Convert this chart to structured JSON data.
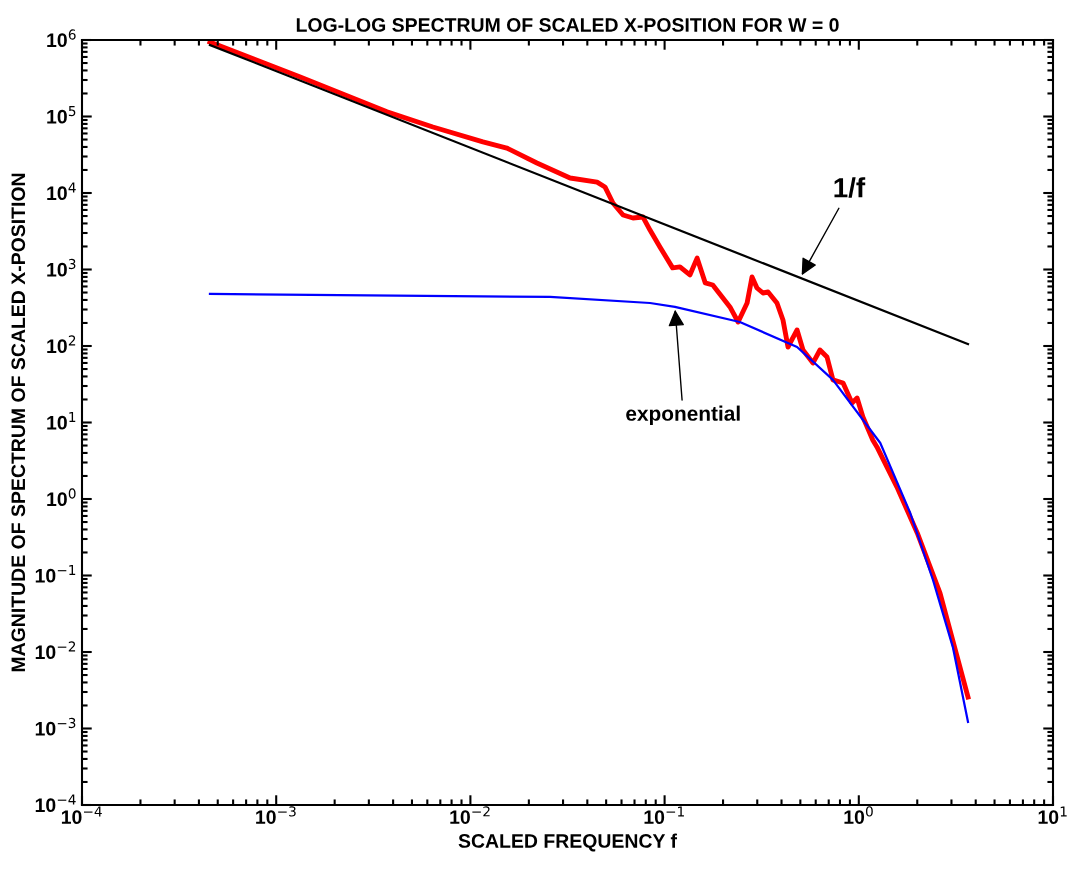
{
  "chart_data": {
    "type": "line",
    "title": "LOG-LOG SPECTRUM OF SCALED X-POSITION FOR W = 0",
    "xlabel": "SCALED FREQUENCY f",
    "ylabel": "MAGNITUDE OF SPECTRUM OF SCALED X-POSITION",
    "log": "xy",
    "grid": false,
    "legend": false,
    "xlim": [
      0.0001,
      10
    ],
    "ylim": [
      0.0001,
      1000000
    ],
    "xticks": [
      {
        "value": 0.0001,
        "label": "10$^{−4}$"
      },
      {
        "value": 0.001,
        "label": "10$^{−3}$"
      },
      {
        "value": 0.01,
        "label": "10$^{−2}$"
      },
      {
        "value": 0.1,
        "label": "10$^{−1}$"
      },
      {
        "value": 1,
        "label": "10$^{0}$"
      },
      {
        "value": 10,
        "label": "10$^{1}$"
      }
    ],
    "yticks": [
      {
        "value": 0.0001,
        "label": "10$^{−4}$"
      },
      {
        "value": 0.001,
        "label": "10$^{−3}$"
      },
      {
        "value": 0.01,
        "label": "10$^{−2}$"
      },
      {
        "value": 0.1,
        "label": "10$^{−1}$"
      },
      {
        "value": 1,
        "label": "10$^{0}$"
      },
      {
        "value": 10,
        "label": "10$^{1}$"
      },
      {
        "value": 100,
        "label": "10$^{2}$"
      },
      {
        "value": 1000,
        "label": "10$^{3}$"
      },
      {
        "value": 10000,
        "label": "10$^{4}$"
      },
      {
        "value": 100000,
        "label": "10$^{5}$"
      },
      {
        "value": 1000000,
        "label": "10$^{6}$"
      }
    ],
    "series": [
      {
        "color": "#000000",
        "x": [
          0.000456,
          3.65
        ],
        "values": [
          860000,
          106
        ]
      },
      {
        "color": "#0000ff",
        "x": [
          0.000456,
          0.0257,
          0.0841,
          0.113,
          0.244,
          0.481,
          0.736,
          1.29,
          1.84,
          2.41,
          3.05,
          3.65
        ],
        "values": [
          479,
          438,
          365,
          324,
          206,
          97,
          36,
          5.39,
          0.656,
          0.0873,
          0.0116,
          0.00122
        ]
      },
      {
        "color": "#ff0000",
        "x": [
          0.000456,
          0.00133,
          0.00372,
          0.00641,
          0.0116,
          0.0154,
          0.022,
          0.0326,
          0.0449,
          0.0493,
          0.0542,
          0.0611,
          0.0687,
          0.0774,
          0.0841,
          0.0946,
          0.11,
          0.12,
          0.135,
          0.147,
          0.162,
          0.177,
          0.217,
          0.239,
          0.266,
          0.282,
          0.299,
          0.321,
          0.341,
          0.379,
          0.407,
          0.432,
          0.481,
          0.516,
          0.581,
          0.631,
          0.686,
          0.736,
          0.83,
          0.923,
          0.98,
          1.05,
          1.18,
          1.24,
          1.57,
          2.0,
          2.62,
          3.65
        ],
        "values": [
          940000,
          328000,
          115000,
          73000,
          46500,
          38700,
          24700,
          15700,
          13900,
          12000,
          7400,
          5150,
          4710,
          4850,
          3280,
          1970,
          1050,
          1080,
          848,
          1410,
          667,
          627,
          324,
          206,
          365,
          798,
          573,
          493,
          508,
          365,
          219,
          97,
          162,
          88.7,
          60,
          88.7,
          71.8,
          36,
          32.8,
          18,
          20.9,
          11.8,
          5.9,
          4.79,
          1.44,
          0.36,
          0.059,
          0.00258
        ]
      }
    ],
    "annotations": [
      {
        "text": "1/f",
        "x": 0.5,
        "y": 784
      },
      {
        "text": "exponential",
        "x": 0.113,
        "y": 324
      }
    ]
  }
}
